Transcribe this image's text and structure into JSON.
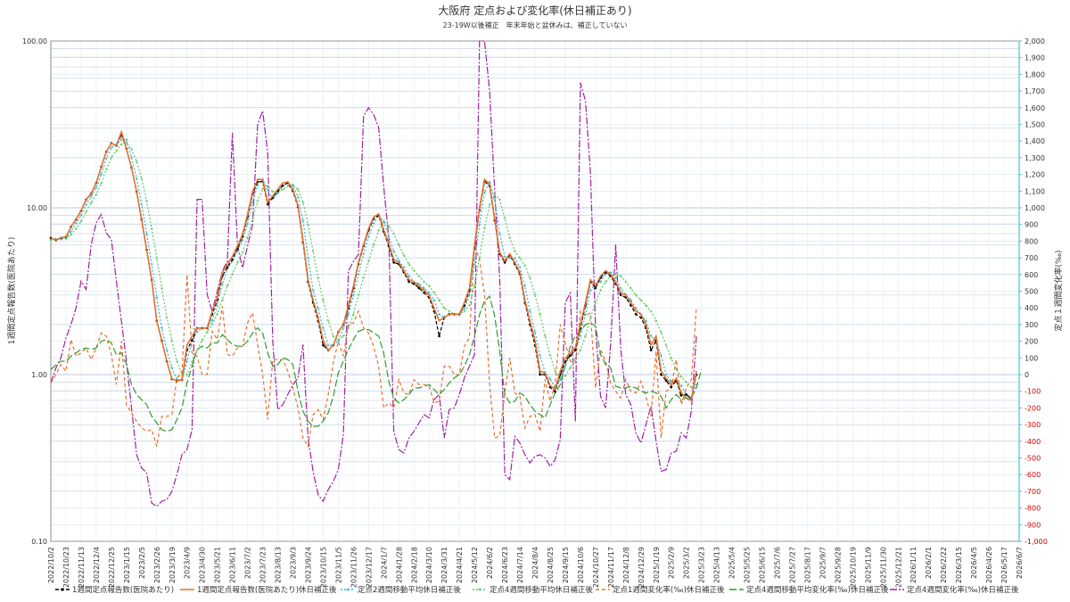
{
  "chart_data": {
    "type": "line",
    "title": "大阪府 定点および変化率(休日補正あり)",
    "subtitle": "23-19W以後補正　年末年始と盆休みは、補正していない",
    "ylabel_left": "1週間定点報告数(医院あたり)",
    "ylabel_right": "定点１週間変化率(‰)",
    "yscale_left": "log",
    "ylim_left": [
      0.1,
      100
    ],
    "ylim_right": [
      -1000,
      2000
    ],
    "left_ticks": [
      "100.00",
      "10.00",
      "1.00",
      "0.10"
    ],
    "right_ticks": [
      "2,000",
      "1,900",
      "1,800",
      "1,700",
      "1,600",
      "1,500",
      "1,400",
      "1,300",
      "1,200",
      "1,100",
      "1,000",
      "900",
      "800",
      "700",
      "600",
      "500",
      "400",
      "300",
      "200",
      "100",
      "0",
      "-100",
      "-200",
      "-300",
      "-400",
      "-500",
      "-600",
      "-700",
      "-800",
      "-900",
      "-1,000"
    ],
    "x_labels": [
      "2022/10/2",
      "2022/10/23",
      "2022/11/13",
      "2022/12/4",
      "2022/12/25",
      "2023/1/15",
      "2023/2/5",
      "2023/2/26",
      "2023/3/19",
      "2023/4/9",
      "2023/4/30",
      "2023/5/21",
      "2023/6/11",
      "2023/7/2",
      "2023/7/23",
      "2023/8/13",
      "2023/9/3",
      "2023/9/24",
      "2023/10/15",
      "2023/11/5",
      "2023/11/26",
      "2023/12/17",
      "2024/1/7",
      "2024/1/28",
      "2024/2/18",
      "2024/3/10",
      "2024/3/31",
      "2024/4/21",
      "2024/5/12",
      "2024/6/2",
      "2024/6/23",
      "2024/7/14",
      "2024/8/4",
      "2024/8/25",
      "2024/9/15",
      "2024/10/6",
      "2024/10/27",
      "2024/11/17",
      "2024/12/8",
      "2024/12/29",
      "2025/1/19",
      "2025/2/9",
      "2025/3/2",
      "2025/3/23",
      "2025/4/13",
      "2025/5/4",
      "2025/5/25",
      "2025/6/15",
      "2025/7/6",
      "2025/7/27",
      "2025/8/17",
      "2025/9/7",
      "2025/9/28",
      "2025/10/19",
      "2025/11/9",
      "2025/11/30",
      "2025/12/21",
      "2026/1/11",
      "2026/2/1",
      "2026/2/22",
      "2026/3/15",
      "2026/4/5",
      "2026/4/26",
      "2026/5/17",
      "2026/6/7"
    ],
    "legend_position": "bottom",
    "grid": true,
    "series": [
      {
        "name": "1週間定点報告数(医院あたり)",
        "axis": "left",
        "color": "#000000",
        "dash": "4,2",
        "marker": "dot",
        "values": [
          6.6,
          6.4,
          6.6,
          6.7,
          7.7,
          8.5,
          9.6,
          11.2,
          12.2,
          14.1,
          17.6,
          21.7,
          24.4,
          23.6,
          27.5,
          22.6,
          17.4,
          12.5,
          8.5,
          5.6,
          3.7,
          2.1,
          1.6,
          1.2,
          0.94,
          0.92,
          0.93,
          1.4,
          1.6,
          1.9,
          1.9,
          1.9,
          2.3,
          2.8,
          3.9,
          4.4,
          4.9,
          5.7,
          6.7,
          8.8,
          12.1,
          14.3,
          14.4,
          10.5,
          11.5,
          12.6,
          13.6,
          14.1,
          12.6,
          10.1,
          6.2,
          3.6,
          2.7,
          2.1,
          1.5,
          1.4,
          1.5,
          1.8,
          2.0,
          2.5,
          3.3,
          4.6,
          5.9,
          7.3,
          8.6,
          9.0,
          7.2,
          5.9,
          4.7,
          4.6,
          4.1,
          3.6,
          3.5,
          3.3,
          3.1,
          2.9,
          2.4,
          1.7,
          2.2,
          2.3,
          2.3,
          2.3,
          2.6,
          3.2,
          5.7,
          9.7,
          14.4,
          13.5,
          8.4,
          5.3,
          4.7,
          5.2,
          4.6,
          4.0,
          2.7,
          2.0,
          1.5,
          1.0,
          1.0,
          0.84,
          0.79,
          1.0,
          1.2,
          1.3,
          1.4,
          1.9,
          2.6,
          3.6,
          3.3,
          3.8,
          4.1,
          3.9,
          3.5,
          3.0,
          2.9,
          2.6,
          2.3,
          2.2,
          1.9,
          1.4,
          1.6,
          1.0,
          0.92,
          0.84,
          0.92,
          0.75,
          0.76,
          0.72,
          1.0
        ]
      },
      {
        "name": "1週間定点報告数(医院あたり)休日補正後",
        "axis": "left",
        "color": "#e8702a",
        "dash": "none",
        "marker": "none",
        "values": [
          6.6,
          6.4,
          6.6,
          6.7,
          7.7,
          8.5,
          9.6,
          11.2,
          12.2,
          14.1,
          17.6,
          21.7,
          24.4,
          23.6,
          28.5,
          22.6,
          17.4,
          12.5,
          8.5,
          5.6,
          3.7,
          2.1,
          1.6,
          1.2,
          0.94,
          0.92,
          0.93,
          1.5,
          1.7,
          1.9,
          1.9,
          1.9,
          2.4,
          2.9,
          4.1,
          4.6,
          5.1,
          5.9,
          6.9,
          9.1,
          12.5,
          14.8,
          14.8,
          10.8,
          11.8,
          12.9,
          14.1,
          14.3,
          12.9,
          10.3,
          6.4,
          3.7,
          2.8,
          2.2,
          1.6,
          1.4,
          1.5,
          1.8,
          2.0,
          2.6,
          3.4,
          4.7,
          6.0,
          7.5,
          8.8,
          9.2,
          7.4,
          6.1,
          4.9,
          4.7,
          4.2,
          3.7,
          3.6,
          3.4,
          3.2,
          3.0,
          2.5,
          2.1,
          2.2,
          2.3,
          2.3,
          2.3,
          2.7,
          3.3,
          5.9,
          10.0,
          14.8,
          13.9,
          8.6,
          5.4,
          4.8,
          5.3,
          4.7,
          4.1,
          2.8,
          2.1,
          1.6,
          1.05,
          1.02,
          0.86,
          0.81,
          1.05,
          1.25,
          1.35,
          1.45,
          2.0,
          2.7,
          3.7,
          3.4,
          3.9,
          4.2,
          4.0,
          3.6,
          3.1,
          3.0,
          2.7,
          2.4,
          2.3,
          2.0,
          1.5,
          1.7,
          1.05,
          0.95,
          0.87,
          0.95,
          0.78,
          0.72,
          0.7,
          1.05
        ]
      },
      {
        "name": "定点2週間移動平均休日補正後",
        "axis": "left",
        "color": "#29b6d8",
        "dash": "2,2",
        "marker": "plus",
        "values": [
          6.5,
          6.5,
          6.5,
          6.6,
          7.2,
          8.1,
          9.0,
          10.4,
          11.7,
          13.2,
          15.9,
          19.7,
          23.0,
          24.0,
          25.6,
          25.6,
          20.0,
          15.0,
          10.5,
          7.0,
          4.6,
          2.9,
          1.9,
          1.4,
          1.1,
          0.93,
          0.93,
          1.2,
          1.6,
          1.8,
          1.9,
          1.9,
          2.1,
          2.6,
          3.5,
          4.3,
          4.8,
          5.5,
          6.4,
          8.0,
          10.8,
          13.6,
          14.8,
          12.8,
          11.3,
          12.3,
          13.5,
          14.2,
          13.6,
          11.6,
          8.4,
          5.0,
          3.2,
          2.5,
          1.9,
          1.5,
          1.5,
          1.6,
          1.9,
          2.3,
          3.0,
          4.0,
          5.3,
          6.7,
          8.1,
          9.0,
          8.3,
          6.7,
          5.5,
          4.8,
          4.4,
          3.9,
          3.6,
          3.5,
          3.3,
          3.1,
          2.8,
          2.3,
          2.2,
          2.3,
          2.3,
          2.3,
          2.5,
          3.0,
          4.6,
          7.9,
          12.4,
          14.3,
          11.2,
          7.0,
          5.1,
          5.0,
          5.0,
          4.4,
          3.4,
          2.4,
          1.8,
          1.3,
          1.03,
          0.94,
          0.83,
          0.93,
          1.15,
          1.3,
          1.4,
          1.7,
          2.3,
          3.2,
          3.5,
          3.6,
          4.0,
          4.1,
          3.8,
          3.3,
          3.0,
          2.8,
          2.5,
          2.3,
          2.1,
          1.7,
          1.6,
          1.3,
          1.0,
          0.91,
          0.91,
          0.86,
          0.75,
          0.71,
          0.87
        ]
      },
      {
        "name": "定点4週間移動平均休日補正後",
        "axis": "left",
        "color": "#5fc85f",
        "dash": "2,2",
        "marker": "plus",
        "values": [
          6.4,
          6.5,
          6.5,
          6.5,
          6.9,
          7.5,
          8.3,
          9.5,
          10.7,
          12.0,
          14.0,
          17.0,
          20.0,
          22.0,
          24.0,
          24.5,
          22.5,
          19.0,
          15.0,
          11.0,
          7.5,
          5.0,
          3.3,
          2.2,
          1.6,
          1.2,
          1.0,
          1.0,
          1.2,
          1.4,
          1.6,
          1.8,
          2.0,
          2.3,
          2.8,
          3.4,
          4.0,
          4.7,
          5.4,
          6.6,
          8.6,
          11.0,
          13.0,
          13.5,
          12.5,
          12.3,
          12.9,
          13.5,
          13.7,
          12.9,
          10.8,
          7.9,
          5.5,
          3.8,
          2.8,
          2.1,
          1.7,
          1.6,
          1.7,
          1.9,
          2.3,
          3.0,
          3.8,
          4.8,
          6.0,
          7.3,
          8.2,
          7.8,
          7.0,
          6.0,
          5.2,
          4.6,
          4.2,
          3.9,
          3.6,
          3.4,
          3.1,
          2.8,
          2.5,
          2.4,
          2.3,
          2.3,
          2.4,
          2.6,
          3.4,
          5.0,
          7.6,
          10.4,
          12.0,
          11.2,
          8.7,
          6.6,
          5.5,
          5.0,
          4.5,
          3.8,
          3.0,
          2.3,
          1.7,
          1.3,
          1.05,
          0.95,
          0.98,
          1.1,
          1.25,
          1.4,
          1.7,
          2.2,
          2.7,
          3.2,
          3.6,
          3.9,
          4.0,
          3.9,
          3.6,
          3.3,
          3.0,
          2.8,
          2.6,
          2.4,
          2.1,
          1.8,
          1.5,
          1.25,
          1.08,
          0.97,
          0.9,
          0.84,
          0.87
        ]
      },
      {
        "name": "定点1週間変化率(‰)休日補正後",
        "axis": "right",
        "color": "#e8702a",
        "dash": "4,3",
        "marker": "none",
        "values": [
          -50,
          0,
          60,
          20,
          210,
          110,
          130,
          160,
          90,
          160,
          250,
          230,
          120,
          -60,
          200,
          -180,
          -230,
          -280,
          -320,
          -340,
          -330,
          -430,
          -250,
          -250,
          -240,
          -20,
          10,
          600,
          130,
          110,
          0,
          0,
          260,
          210,
          410,
          120,
          110,
          160,
          170,
          310,
          370,
          180,
          0,
          -270,
          90,
          90,
          90,
          20,
          -80,
          -200,
          -380,
          -430,
          -240,
          -210,
          -270,
          -120,
          70,
          200,
          110,
          300,
          310,
          380,
          280,
          250,
          170,
          50,
          -200,
          -170,
          -200,
          -30,
          -110,
          -120,
          -30,
          -60,
          -60,
          -70,
          -170,
          -160,
          50,
          50,
          0,
          0,
          170,
          220,
          780,
          690,
          480,
          -60,
          -380,
          -370,
          -110,
          100,
          -110,
          -130,
          -320,
          -250,
          -240,
          -340,
          -30,
          -160,
          -60,
          300,
          190,
          80,
          70,
          380,
          350,
          370,
          -80,
          150,
          80,
          -50,
          -100,
          -140,
          -30,
          -100,
          -110,
          -40,
          -130,
          -250,
          140,
          -380,
          -100,
          -80,
          90,
          -180,
          -80,
          -30,
          400
        ]
      },
      {
        "name": "定点4週間移動平均変化率(‰)休日補正後",
        "axis": "right",
        "color": "#2e9d2e",
        "dash": "8,3",
        "marker": "none",
        "values": [
          30,
          60,
          80,
          80,
          110,
          130,
          150,
          160,
          150,
          160,
          200,
          210,
          190,
          120,
          130,
          60,
          -60,
          -120,
          -150,
          -180,
          -250,
          -290,
          -330,
          -340,
          -330,
          -270,
          -200,
          -50,
          50,
          150,
          170,
          160,
          190,
          190,
          240,
          210,
          180,
          170,
          170,
          200,
          250,
          280,
          250,
          130,
          50,
          60,
          100,
          90,
          60,
          -100,
          -220,
          -280,
          -310,
          -310,
          -280,
          -230,
          -130,
          10,
          80,
          150,
          210,
          260,
          270,
          270,
          250,
          230,
          130,
          -40,
          -140,
          -170,
          -150,
          -120,
          -80,
          -80,
          -70,
          -60,
          -90,
          -120,
          -90,
          -50,
          -20,
          0,
          50,
          120,
          230,
          360,
          440,
          470,
          350,
          140,
          -120,
          -170,
          -160,
          -110,
          -130,
          -180,
          -220,
          -240,
          -260,
          -180,
          -110,
          -60,
          50,
          170,
          230,
          260,
          300,
          310,
          290,
          120,
          60,
          40,
          -70,
          -80,
          -80,
          -70,
          -80,
          -100,
          -110,
          -100,
          -110,
          -130,
          -200,
          -150,
          -120,
          -150,
          -140,
          -140,
          -80,
          30
        ]
      },
      {
        "name": "定点4週間変化率(‰)休日補正後",
        "axis": "right",
        "color": "#a020a0",
        "dash": "8,2,2,2",
        "marker": "none",
        "values": [
          -50,
          40,
          100,
          220,
          300,
          400,
          560,
          510,
          780,
          910,
          960,
          850,
          810,
          560,
          320,
          80,
          -200,
          -480,
          -560,
          -590,
          -770,
          -790,
          -760,
          -750,
          -700,
          -600,
          -480,
          -450,
          -330,
          1050,
          1050,
          480,
          380,
          500,
          620,
          680,
          1450,
          780,
          640,
          770,
          900,
          1500,
          1580,
          1330,
          200,
          -210,
          -180,
          -120,
          -60,
          -20,
          180,
          -380,
          -580,
          -720,
          -760,
          -690,
          -640,
          -570,
          -360,
          620,
          680,
          720,
          1550,
          1600,
          1560,
          1480,
          1130,
          820,
          -340,
          -450,
          -470,
          -380,
          -340,
          -290,
          -240,
          -260,
          -150,
          -120,
          -380,
          -210,
          -200,
          -120,
          -20,
          50,
          120,
          2000,
          2000,
          1700,
          1100,
          580,
          -600,
          -630,
          -370,
          -410,
          -480,
          -530,
          -490,
          -480,
          -500,
          -550,
          -510,
          -390,
          430,
          490,
          -280,
          1750,
          1640,
          1210,
          280,
          -130,
          -200,
          180,
          780,
          150,
          -120,
          -180,
          -350,
          -410,
          -300,
          -190,
          -400,
          -580,
          -570,
          -470,
          -460,
          -350,
          -380,
          -220,
          230
        ]
      }
    ]
  }
}
